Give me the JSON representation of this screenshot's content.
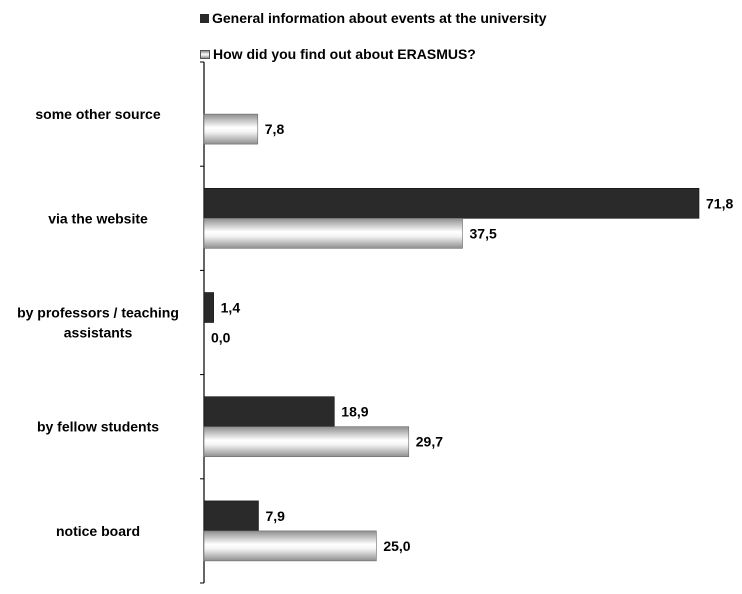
{
  "chart_data": {
    "type": "bar",
    "orientation": "horizontal",
    "categories": [
      "some other source",
      "via the website",
      "by professors / teaching assistants",
      "by fellow students",
      "notice board"
    ],
    "category_lines": [
      [
        "some other source"
      ],
      [
        "via the website"
      ],
      [
        "by professors / teaching",
        "assistants"
      ],
      [
        "by fellow students"
      ],
      [
        "notice board"
      ]
    ],
    "series": [
      {
        "name": "General information about events at the university",
        "values": [
          null,
          71.8,
          1.4,
          18.9,
          7.9
        ],
        "labels": [
          "",
          "71,8",
          "1,4",
          "18,9",
          "7,9"
        ],
        "color": "#2a2a2a"
      },
      {
        "name": "How did you find out about ERASMUS?",
        "values": [
          7.8,
          37.5,
          0.0,
          29.7,
          25.0
        ],
        "labels": [
          "7,8",
          "37,5",
          "0,0",
          "29,7",
          "25,0"
        ],
        "color": "#d8d8d8"
      }
    ],
    "xlim": [
      0,
      71.8
    ],
    "legend_position": "top",
    "grid": false
  }
}
